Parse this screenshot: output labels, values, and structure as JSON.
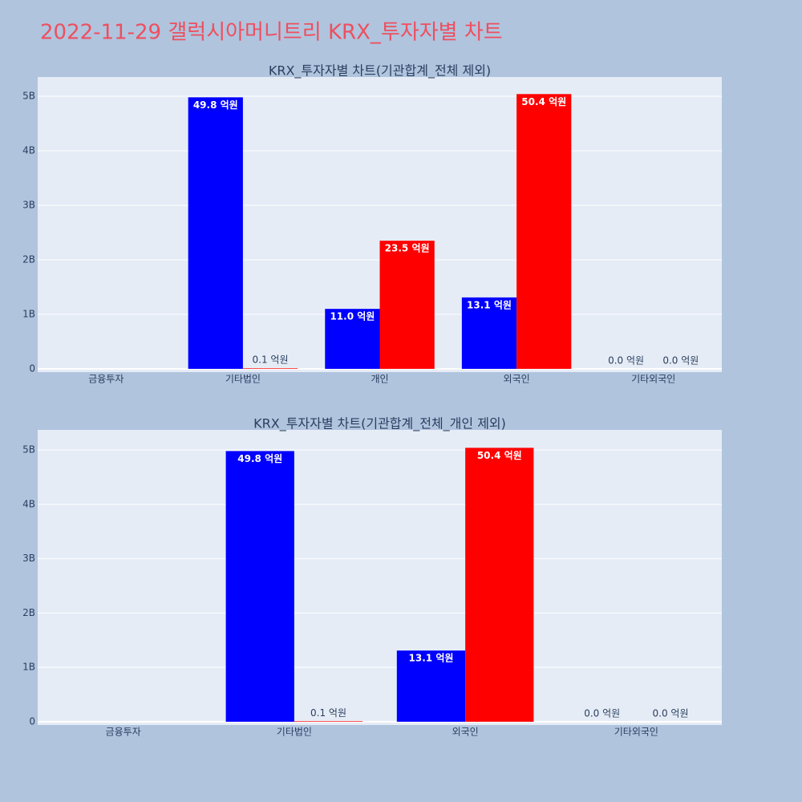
{
  "title": "2022-11-29 갤럭시아머니트리 KRX_투자자별 차트",
  "chart_data": [
    {
      "type": "bar",
      "title": "KRX_투자자별 차트(기관합계_전체 제외)",
      "categories": [
        "금융투자",
        "기타법인",
        "개인",
        "외국인",
        "기타외국인"
      ],
      "series": [
        {
          "color": "#0000ff",
          "values": [
            null,
            4980000000,
            1100000000,
            1310000000,
            0
          ],
          "value_labels": [
            null,
            "49.8 억원",
            "11.0 억원",
            "13.1 억원",
            "0.0 억원"
          ]
        },
        {
          "color": "#ff0000",
          "values": [
            null,
            10000000,
            2350000000,
            5040000000,
            0
          ],
          "value_labels": [
            null,
            "0.1 억원",
            "23.5 억원",
            "50.4 억원",
            "0.0 억원"
          ]
        }
      ],
      "ylim": [
        -60000000,
        5353000000
      ],
      "yticks": [
        0,
        {
          "value": 1000000000,
          "label": "1B"
        },
        {
          "value": 2000000000,
          "label": "2B"
        },
        {
          "value": 3000000000,
          "label": "3B"
        },
        {
          "value": 4000000000,
          "label": "4B"
        },
        {
          "value": 5000000000,
          "label": "5B"
        }
      ],
      "grid": true
    },
    {
      "type": "bar",
      "title": "KRX_투자자별 차트(기관합계_전체_개인 제외)",
      "categories": [
        "금융투자",
        "기타법인",
        "외국인",
        "기타외국인"
      ],
      "series": [
        {
          "color": "#0000ff",
          "values": [
            null,
            4980000000,
            1310000000,
            0
          ],
          "value_labels": [
            null,
            "49.8 억원",
            "13.1 억원",
            "0.0 억원"
          ]
        },
        {
          "color": "#ff0000",
          "values": [
            null,
            10000000,
            5040000000,
            0
          ],
          "value_labels": [
            null,
            "0.1 억원",
            "50.4 억원",
            "0.0 억원"
          ]
        }
      ],
      "ylim": [
        -60000000,
        5370000000
      ],
      "yticks": [
        0,
        {
          "value": 1000000000,
          "label": "1B"
        },
        {
          "value": 2000000000,
          "label": "2B"
        },
        {
          "value": 3000000000,
          "label": "3B"
        },
        {
          "value": 4000000000,
          "label": "4B"
        },
        {
          "value": 5000000000,
          "label": "5B"
        }
      ],
      "grid": true
    }
  ]
}
